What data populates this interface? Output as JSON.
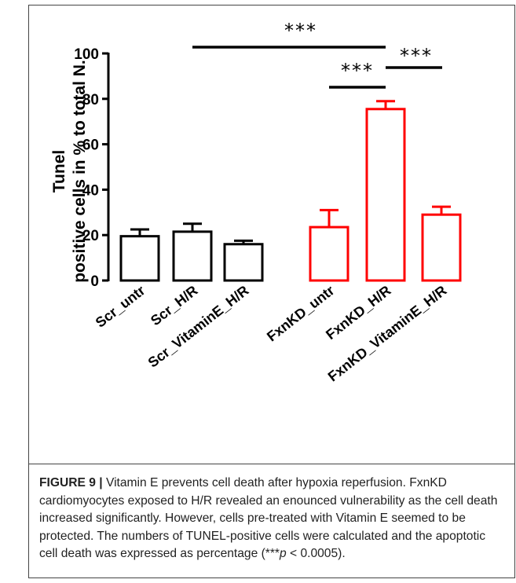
{
  "chart_data": {
    "type": "bar",
    "ylabel_line1": "Tunel",
    "ylabel_line2": "positive cells in % to total N.",
    "xlabel": "",
    "title": "",
    "ylim": [
      0,
      100
    ],
    "yticks": [
      "0",
      "20",
      "40",
      "60",
      "80",
      "100"
    ],
    "ytick_values": [
      0,
      20,
      40,
      60,
      80,
      100
    ],
    "categories": [
      "Scr_untr",
      "Scr_H/R",
      "Scr_VitaminE_H/R",
      "FxnKD_untr",
      "FxnKD_H/R",
      "FxnKD_VitaminE_H/R"
    ],
    "values": [
      19.5,
      21.5,
      16,
      23.5,
      75.5,
      29
    ],
    "errors": [
      3,
      3.5,
      1.5,
      7.5,
      3.5,
      3.5
    ],
    "bar_colors": [
      "#000000",
      "#000000",
      "#000000",
      "#ff0000",
      "#ff0000",
      "#ff0000"
    ],
    "significance": [
      {
        "from": "Scr_H/R",
        "to": "FxnKD_H/R",
        "label": "***"
      },
      {
        "from": "FxnKD_untr",
        "to": "FxnKD_H/R",
        "label": "***"
      },
      {
        "from": "FxnKD_H/R",
        "to": "FxnKD_VitaminE_H/R",
        "label": "***"
      }
    ],
    "grid": false
  },
  "caption": {
    "label": "FIGURE 9 |",
    "text_before_p": " Vitamin E prevents cell death after hypoxia reperfusion. FxnKD cardiomyocytes exposed to H/R revealed an enounced vulnerability as the cell death increased significantly. However, cells pre-treated with Vitamin E seemed to be protected. The numbers of TUNEL-positive cells were calculated and the apoptotic cell death was expressed as percentage (***",
    "p_symbol": "p",
    "text_after_p": " < 0.0005)."
  }
}
